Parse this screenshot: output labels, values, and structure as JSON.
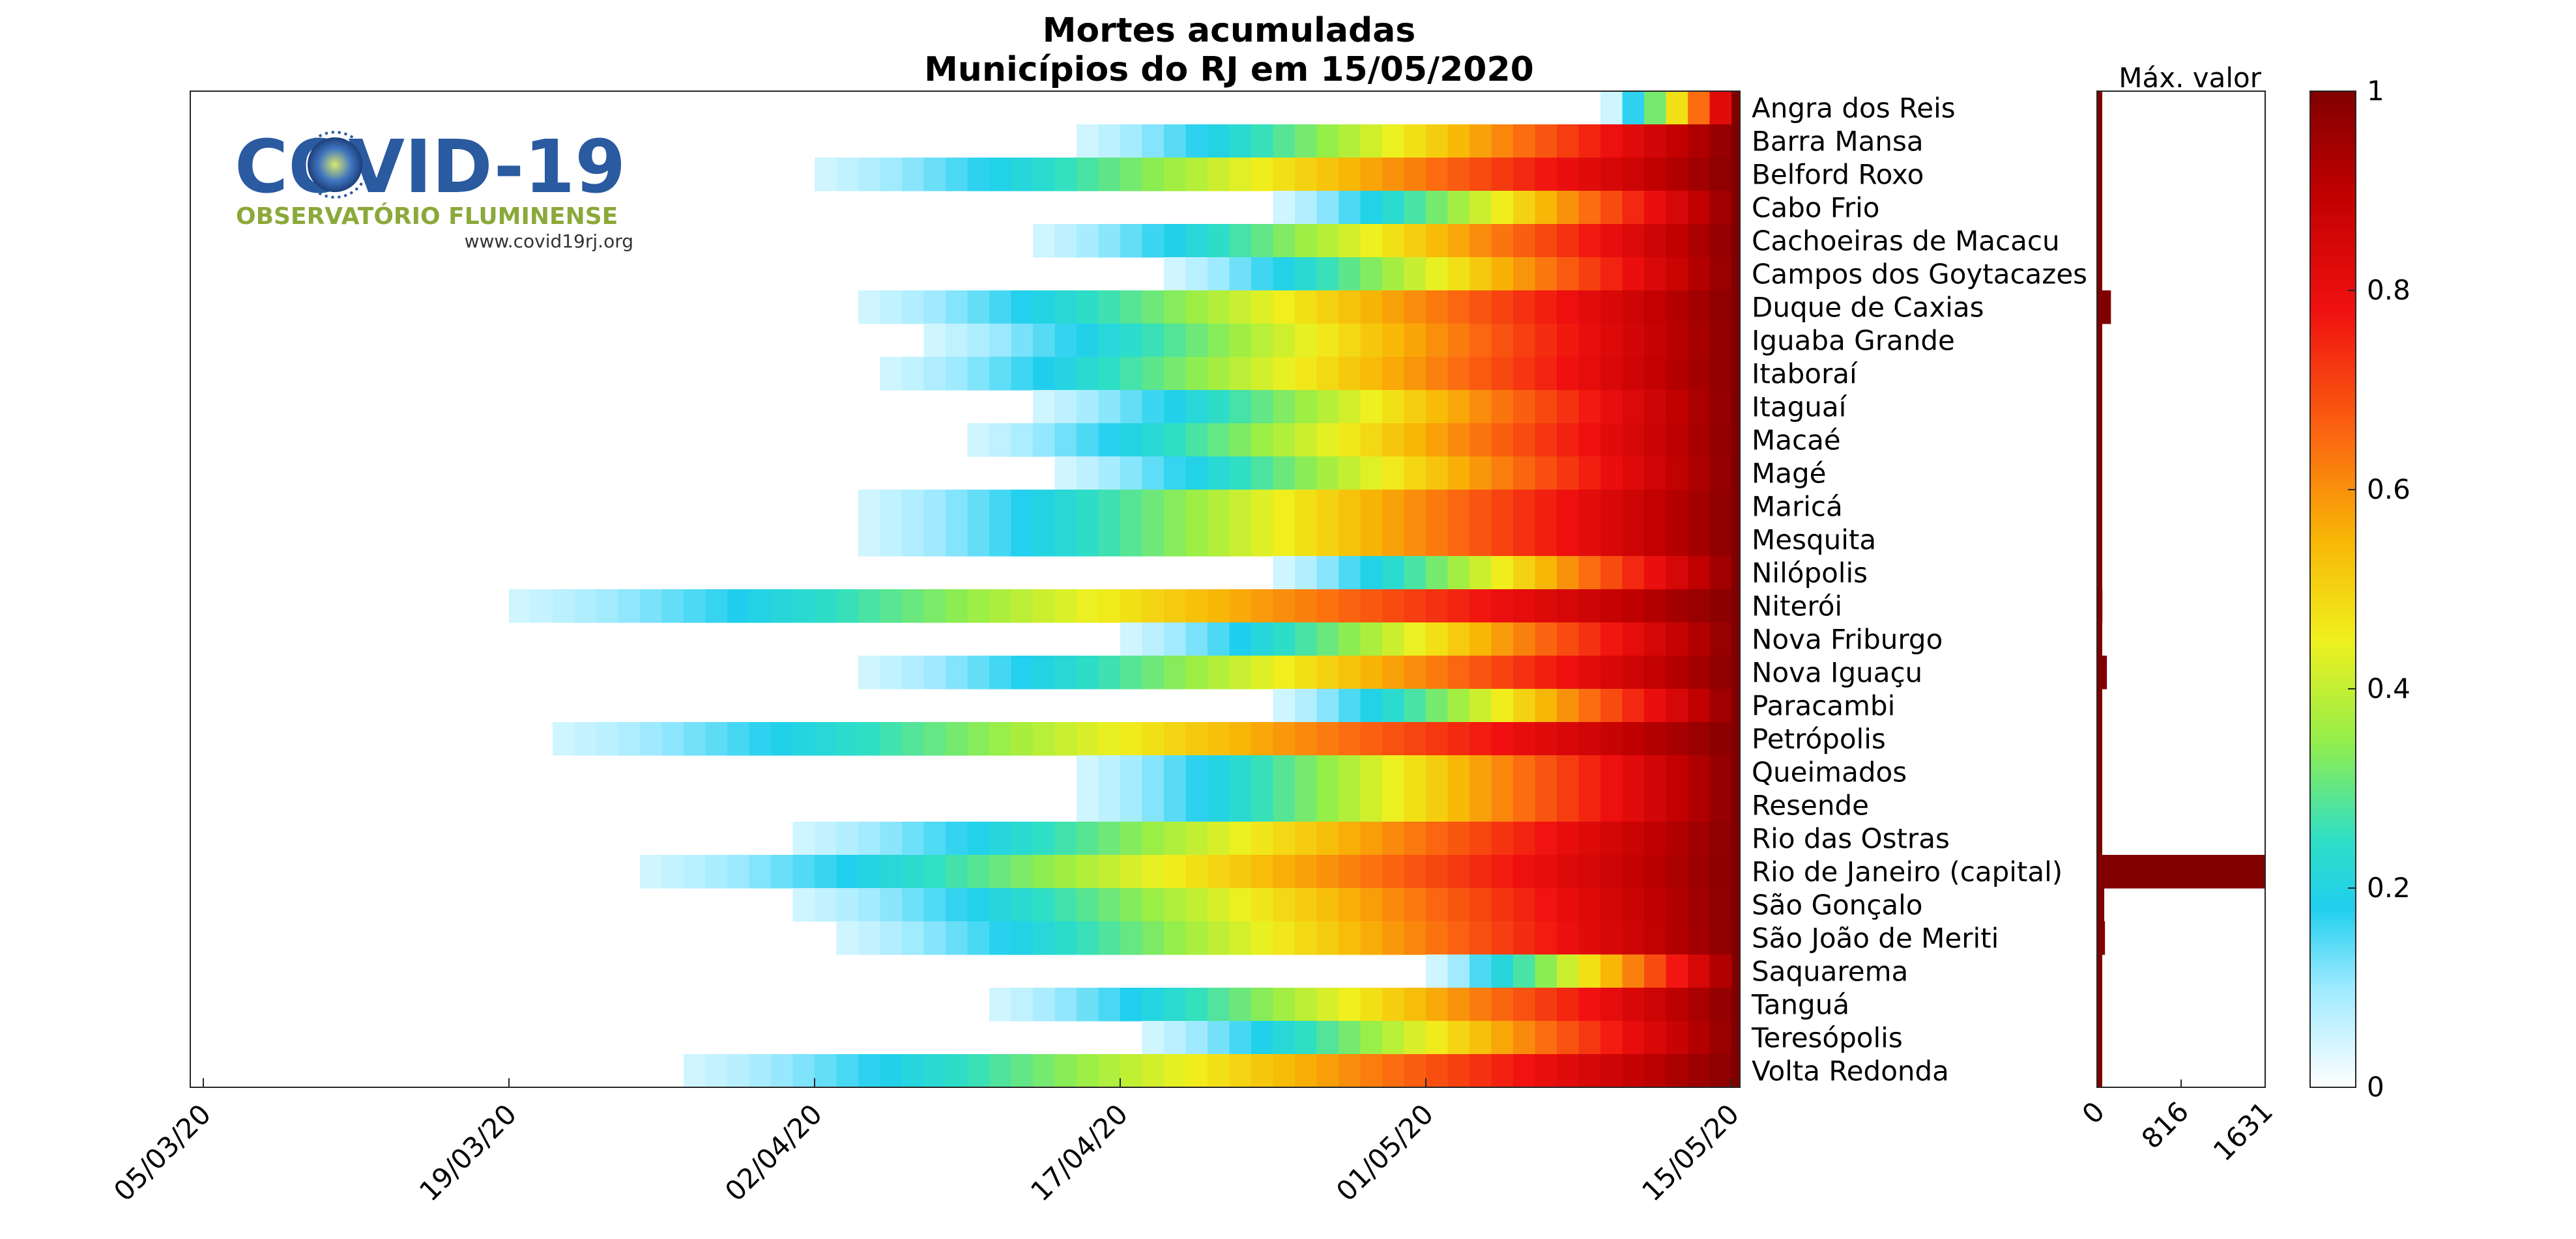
{
  "chart_data": {
    "type": "heatmap",
    "title": "Mortes acumuladas",
    "subtitle": "Municípios do RJ em 15/05/2020",
    "max_label": "Máx. valor",
    "x_ticks": [
      "05/03/20",
      "19/03/20",
      "02/04/20",
      "17/04/20",
      "01/05/20",
      "15/05/20"
    ],
    "x_range": [
      "05/03/20",
      "15/05/20"
    ],
    "max_ticks": [
      "0",
      "816",
      "1631"
    ],
    "max_range": [
      0,
      1631
    ],
    "colorbar_ticks": [
      "0",
      "0.2",
      "0.4",
      "0.6",
      "0.8",
      "1"
    ],
    "colorbar_range": [
      0,
      1
    ],
    "municipalities": [
      {
        "name": "Angra dos Reis",
        "start_day": 64,
        "max": 8
      },
      {
        "name": "Barra Mansa",
        "start_day": 40,
        "max": 9
      },
      {
        "name": "Belford Roxo",
        "start_day": 28,
        "max": 23
      },
      {
        "name": "Cabo Frio",
        "start_day": 49,
        "max": 7
      },
      {
        "name": "Cachoeiras de Macacu",
        "start_day": 38,
        "max": 8
      },
      {
        "name": "Campos dos Goytacazes",
        "start_day": 44,
        "max": 12
      },
      {
        "name": "Duque de Caxias",
        "start_day": 30,
        "max": 135
      },
      {
        "name": "Iguaba Grande",
        "start_day": 33,
        "max": 3
      },
      {
        "name": "Itaboraí",
        "start_day": 31,
        "max": 29
      },
      {
        "name": "Itaguaí",
        "start_day": 38,
        "max": 21
      },
      {
        "name": "Macaé",
        "start_day": 35,
        "max": 11
      },
      {
        "name": "Magé",
        "start_day": 39,
        "max": 40
      },
      {
        "name": "Maricá",
        "start_day": 30,
        "max": 17
      },
      {
        "name": "Mesquita",
        "start_day": 30,
        "max": 28
      },
      {
        "name": "Nilópolis",
        "start_day": 49,
        "max": 25
      },
      {
        "name": "Niterói",
        "start_day": 14,
        "max": 52
      },
      {
        "name": "Nova Friburgo",
        "start_day": 42,
        "max": 15
      },
      {
        "name": "Nova Iguaçu",
        "start_day": 30,
        "max": 96
      },
      {
        "name": "Paracambi",
        "start_day": 49,
        "max": 6
      },
      {
        "name": "Petrópolis",
        "start_day": 16,
        "max": 48
      },
      {
        "name": "Queimados",
        "start_day": 40,
        "max": 20
      },
      {
        "name": "Resende",
        "start_day": 40,
        "max": 4
      },
      {
        "name": "Rio das Ostras",
        "start_day": 27,
        "max": 6
      },
      {
        "name": "Rio de Janeiro (capital)",
        "start_day": 20,
        "max": 1631
      },
      {
        "name": "São Gonçalo",
        "start_day": 27,
        "max": 70
      },
      {
        "name": "São João de Meriti",
        "start_day": 29,
        "max": 77
      },
      {
        "name": "Saquarema",
        "start_day": 56,
        "max": 5
      },
      {
        "name": "Tanguá",
        "start_day": 36,
        "max": 3
      },
      {
        "name": "Teresópolis",
        "start_day": 43,
        "max": 20
      },
      {
        "name": "Volta Redonda",
        "start_day": 22,
        "max": 30
      }
    ]
  },
  "logo": {
    "title": "COVID-19",
    "subtitle": "OBSERVATÓRIO FLUMINENSE",
    "url": "www.covid19rj.org"
  },
  "colors": {
    "max_bar": "#800000",
    "axis": "#262626"
  },
  "icons": [
    "coronavirus-icon"
  ]
}
